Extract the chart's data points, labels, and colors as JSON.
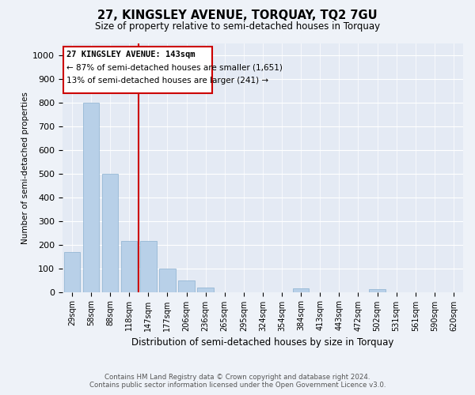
{
  "title": "27, KINGSLEY AVENUE, TORQUAY, TQ2 7GU",
  "subtitle": "Size of property relative to semi-detached houses in Torquay",
  "xlabel": "Distribution of semi-detached houses by size in Torquay",
  "ylabel": "Number of semi-detached properties",
  "categories": [
    "29sqm",
    "58sqm",
    "88sqm",
    "118sqm",
    "147sqm",
    "177sqm",
    "206sqm",
    "236sqm",
    "265sqm",
    "295sqm",
    "324sqm",
    "354sqm",
    "384sqm",
    "413sqm",
    "443sqm",
    "472sqm",
    "502sqm",
    "531sqm",
    "561sqm",
    "590sqm",
    "620sqm"
  ],
  "values": [
    168,
    800,
    500,
    215,
    215,
    100,
    50,
    20,
    0,
    0,
    0,
    0,
    15,
    0,
    0,
    0,
    12,
    0,
    0,
    0,
    0
  ],
  "bar_color": "#b8d0e8",
  "bar_edge_color": "#8ab0d0",
  "vline_color": "#cc0000",
  "vline_pos": 3.5,
  "box_text_line1": "27 KINGSLEY AVENUE: 143sqm",
  "box_text_line2": "← 87% of semi-detached houses are smaller (1,651)",
  "box_text_line3": "13% of semi-detached houses are larger (241) →",
  "box_color": "#cc0000",
  "ylim": [
    0,
    1050
  ],
  "yticks": [
    0,
    100,
    200,
    300,
    400,
    500,
    600,
    700,
    800,
    900,
    1000
  ],
  "footnote_line1": "Contains HM Land Registry data © Crown copyright and database right 2024.",
  "footnote_line2": "Contains public sector information licensed under the Open Government Licence v3.0.",
  "background_color": "#eef2f8",
  "plot_background": "#e4eaf4"
}
